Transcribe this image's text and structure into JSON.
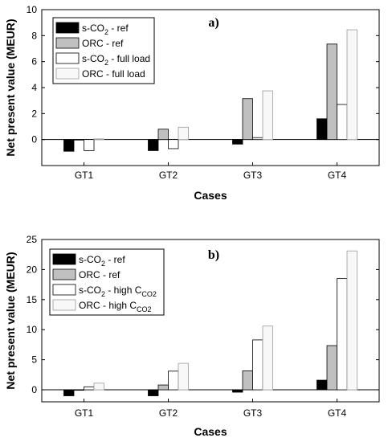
{
  "chart_data": [
    {
      "type": "bar",
      "panel_label": "a)",
      "categories": [
        "GT1",
        "GT2",
        "GT3",
        "GT4"
      ],
      "ylabel": "Net present value (MEUR)",
      "xlabel": "Cases",
      "ylim": [
        -2,
        10
      ],
      "yticks": [
        0,
        2,
        4,
        6,
        8,
        10
      ],
      "legend_position": "top-left",
      "series": [
        {
          "name_main": "s-CO",
          "name_sub": "2",
          "name_tail": " - ref",
          "fill": "#000000",
          "values": [
            -0.9,
            -0.85,
            -0.35,
            1.6
          ]
        },
        {
          "name_main": "ORC - ref",
          "name_sub": "",
          "name_tail": "",
          "fill": "#c0c0c0",
          "values": [
            0.0,
            0.8,
            3.15,
            7.35
          ]
        },
        {
          "name_main": "s-CO",
          "name_sub": "2",
          "name_tail": " - full load",
          "fill": "#ffffff",
          "values": [
            -0.85,
            -0.7,
            0.15,
            2.7
          ]
        },
        {
          "name_main": "ORC - full load",
          "name_sub": "",
          "name_tail": "",
          "fill": "#f8f8f8",
          "values": [
            0.05,
            0.95,
            3.75,
            8.45
          ]
        }
      ]
    },
    {
      "type": "bar",
      "panel_label": "b)",
      "categories": [
        "GT1",
        "GT2",
        "GT3",
        "GT4"
      ],
      "ylabel": "Net present value (MEUR)",
      "xlabel": "Cases",
      "ylim": [
        -2,
        25
      ],
      "yticks": [
        0,
        5,
        10,
        15,
        20,
        25
      ],
      "legend_position": "top-left",
      "series": [
        {
          "name_main": "s-CO",
          "name_sub": "2",
          "name_tail": " - ref",
          "fill": "#000000",
          "values": [
            -1.0,
            -1.0,
            -0.4,
            1.6
          ]
        },
        {
          "name_main": "ORC - ref",
          "name_sub": "",
          "name_tail": "",
          "fill": "#c0c0c0",
          "values": [
            0.0,
            0.8,
            3.15,
            7.35
          ]
        },
        {
          "name_main": "s-CO",
          "name_sub": "2",
          "name_tail": " - high C",
          "name_sub2": "CO2",
          "fill": "#ffffff",
          "values": [
            0.5,
            3.1,
            8.3,
            18.5
          ]
        },
        {
          "name_main": "ORC - high C",
          "name_sub": "CO2",
          "name_tail": "",
          "fill": "#f8f8f8",
          "values": [
            1.1,
            4.4,
            10.6,
            23.1
          ]
        }
      ]
    }
  ]
}
